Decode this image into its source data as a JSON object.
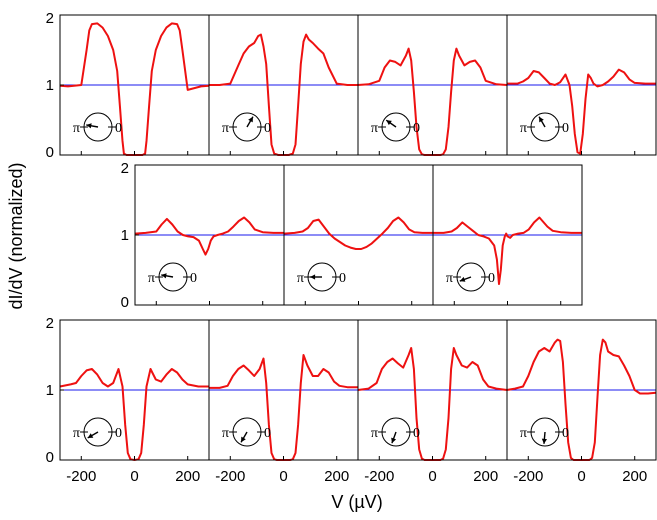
{
  "chart_data": {
    "type": "line",
    "ylabel": "dI/dV (normalized)",
    "xlabel": "V (µV)",
    "xlim": [
      -280,
      280
    ],
    "ylim": [
      0,
      2
    ],
    "x_ticks": [
      -200,
      0,
      200
    ],
    "y_ticks": [
      0,
      1,
      2
    ],
    "reference_line": 1,
    "colors": {
      "curve": "#ee1111",
      "reference": "#1a1aee",
      "frame": "#000000"
    },
    "inset_labels": {
      "left": "π",
      "right": "0"
    },
    "panels": [
      {
        "row": 0,
        "col": 0,
        "phase_deg": 170,
        "x": [
          -280,
          -250,
          -200,
          -180,
          -170,
          -160,
          -140,
          -120,
          -100,
          -80,
          -65,
          -55,
          -45,
          -40,
          -30,
          0,
          30,
          40,
          45,
          55,
          65,
          80,
          100,
          120,
          140,
          160,
          170,
          180,
          200,
          250,
          280
        ],
        "y": [
          0.99,
          0.98,
          1.0,
          1.5,
          1.78,
          1.87,
          1.88,
          1.82,
          1.7,
          1.5,
          1.2,
          0.7,
          0.2,
          0.02,
          0.0,
          0.0,
          0.0,
          0.02,
          0.2,
          0.7,
          1.2,
          1.5,
          1.7,
          1.82,
          1.88,
          1.87,
          1.78,
          1.5,
          0.93,
          0.98,
          0.99
        ]
      },
      {
        "row": 0,
        "col": 1,
        "phase_deg": 60,
        "x": [
          -280,
          -240,
          -200,
          -170,
          -150,
          -130,
          -110,
          -95,
          -85,
          -75,
          -65,
          -55,
          -45,
          -35,
          -20,
          0,
          20,
          35,
          45,
          55,
          65,
          75,
          85,
          95,
          110,
          130,
          150,
          170,
          200,
          240,
          280
        ],
        "y": [
          1.0,
          1.0,
          1.02,
          1.28,
          1.45,
          1.55,
          1.6,
          1.7,
          1.72,
          1.55,
          1.3,
          0.7,
          0.15,
          0.02,
          0.0,
          0.0,
          0.0,
          0.02,
          0.15,
          0.7,
          1.3,
          1.62,
          1.72,
          1.65,
          1.6,
          1.52,
          1.45,
          1.25,
          1.02,
          1.0,
          1.0
        ]
      },
      {
        "row": 0,
        "col": 2,
        "phase_deg": 145,
        "x": [
          -280,
          -240,
          -200,
          -180,
          -160,
          -140,
          -120,
          -100,
          -90,
          -80,
          -70,
          -60,
          -50,
          -40,
          -30,
          0,
          30,
          40,
          50,
          60,
          70,
          80,
          90,
          100,
          120,
          140,
          160,
          180,
          200,
          240,
          280
        ],
        "y": [
          1.0,
          1.01,
          1.06,
          1.25,
          1.35,
          1.33,
          1.28,
          1.42,
          1.52,
          1.35,
          0.9,
          0.4,
          0.08,
          0.01,
          0.0,
          0.0,
          0.0,
          0.01,
          0.08,
          0.4,
          0.9,
          1.35,
          1.52,
          1.42,
          1.28,
          1.33,
          1.35,
          1.25,
          1.06,
          1.01,
          1.0
        ]
      },
      {
        "row": 0,
        "col": 3,
        "phase_deg": 120,
        "x": [
          -280,
          -240,
          -220,
          -200,
          -180,
          -160,
          -140,
          -120,
          -100,
          -80,
          -60,
          -45,
          -35,
          -25,
          -15,
          -5,
          5,
          15,
          25,
          35,
          45,
          60,
          80,
          100,
          120,
          140,
          160,
          180,
          200,
          240,
          280
        ],
        "y": [
          1.02,
          1.02,
          1.05,
          1.1,
          1.2,
          1.18,
          1.1,
          1.02,
          1.0,
          1.04,
          1.15,
          1.0,
          0.7,
          0.3,
          0.04,
          0.02,
          0.3,
          0.8,
          1.15,
          1.1,
          1.02,
          0.98,
          1.0,
          1.05,
          1.12,
          1.22,
          1.18,
          1.08,
          1.03,
          1.02,
          1.02
        ]
      },
      {
        "row": 1,
        "col": 0,
        "phase_deg": 170,
        "x": [
          -280,
          -240,
          -200,
          -180,
          -160,
          -140,
          -120,
          -100,
          -80,
          -60,
          -40,
          -25,
          -15,
          -5,
          5,
          15,
          30,
          50,
          70,
          90,
          110,
          130,
          150,
          170,
          200,
          240,
          280
        ],
        "y": [
          1.02,
          1.03,
          1.05,
          1.15,
          1.23,
          1.15,
          1.05,
          1.0,
          0.98,
          0.97,
          0.92,
          0.8,
          0.72,
          0.8,
          0.92,
          0.98,
          1.0,
          1.02,
          1.05,
          1.12,
          1.2,
          1.25,
          1.18,
          1.08,
          1.04,
          1.03,
          1.03
        ]
      },
      {
        "row": 1,
        "col": 1,
        "phase_deg": 180,
        "x": [
          -280,
          -240,
          -210,
          -190,
          -170,
          -150,
          -130,
          -110,
          -90,
          -70,
          -50,
          -30,
          -10,
          10,
          30,
          50,
          70,
          90,
          110,
          130,
          150,
          170,
          190,
          210,
          240,
          280
        ],
        "y": [
          1.02,
          1.03,
          1.05,
          1.1,
          1.2,
          1.22,
          1.12,
          1.02,
          0.95,
          0.9,
          0.85,
          0.82,
          0.8,
          0.8,
          0.83,
          0.88,
          0.95,
          1.02,
          1.1,
          1.2,
          1.25,
          1.18,
          1.08,
          1.04,
          1.03,
          1.03
        ]
      },
      {
        "row": 1,
        "col": 2,
        "phase_deg": 200,
        "x": [
          -280,
          -240,
          -210,
          -190,
          -170,
          -150,
          -130,
          -110,
          -90,
          -70,
          -50,
          -40,
          -32,
          -25,
          -18,
          -10,
          -5,
          0,
          10,
          20,
          40,
          60,
          80,
          100,
          120,
          150,
          170,
          200,
          240,
          280
        ],
        "y": [
          1.03,
          1.03,
          1.05,
          1.1,
          1.18,
          1.12,
          1.06,
          1.0,
          0.98,
          0.95,
          0.85,
          0.65,
          0.3,
          0.5,
          0.85,
          0.98,
          1.02,
          0.98,
          0.96,
          1.0,
          1.02,
          1.03,
          1.08,
          1.18,
          1.25,
          1.12,
          1.06,
          1.04,
          1.03,
          1.03
        ]
      },
      {
        "row": 2,
        "col": 0,
        "phase_deg": 210,
        "x": [
          -280,
          -240,
          -220,
          -200,
          -180,
          -160,
          -140,
          -120,
          -100,
          -80,
          -60,
          -45,
          -35,
          -25,
          -15,
          0,
          15,
          25,
          35,
          45,
          60,
          80,
          100,
          120,
          140,
          160,
          180,
          200,
          240,
          280
        ],
        "y": [
          1.05,
          1.08,
          1.1,
          1.2,
          1.28,
          1.3,
          1.22,
          1.1,
          1.05,
          1.1,
          1.3,
          1.05,
          0.5,
          0.1,
          0.01,
          0.0,
          0.01,
          0.1,
          0.5,
          1.05,
          1.3,
          1.15,
          1.12,
          1.22,
          1.3,
          1.25,
          1.15,
          1.08,
          1.05,
          1.05
        ]
      },
      {
        "row": 2,
        "col": 1,
        "phase_deg": 240,
        "x": [
          -280,
          -240,
          -210,
          -190,
          -170,
          -150,
          -130,
          -110,
          -90,
          -75,
          -65,
          -55,
          -45,
          -35,
          -25,
          0,
          25,
          35,
          45,
          55,
          65,
          75,
          90,
          110,
          130,
          150,
          170,
          190,
          210,
          240,
          280
        ],
        "y": [
          1.03,
          1.03,
          1.06,
          1.2,
          1.3,
          1.35,
          1.28,
          1.2,
          1.3,
          1.45,
          1.1,
          0.5,
          0.1,
          0.01,
          0.0,
          0.0,
          0.0,
          0.01,
          0.1,
          0.5,
          1.1,
          1.5,
          1.35,
          1.2,
          1.2,
          1.3,
          1.25,
          1.12,
          1.06,
          1.04,
          1.04
        ]
      },
      {
        "row": 2,
        "col": 2,
        "phase_deg": 250,
        "x": [
          -280,
          -240,
          -210,
          -190,
          -170,
          -150,
          -130,
          -110,
          -90,
          -80,
          -70,
          -60,
          -50,
          -40,
          -30,
          0,
          30,
          40,
          50,
          60,
          70,
          80,
          90,
          110,
          130,
          150,
          170,
          190,
          210,
          240,
          280
        ],
        "y": [
          1.0,
          1.02,
          1.1,
          1.3,
          1.4,
          1.45,
          1.38,
          1.32,
          1.5,
          1.6,
          1.3,
          0.6,
          0.15,
          0.02,
          0.0,
          0.0,
          0.0,
          0.02,
          0.15,
          0.6,
          1.3,
          1.6,
          1.5,
          1.35,
          1.32,
          1.4,
          1.35,
          1.15,
          1.05,
          1.02,
          1.0
        ]
      },
      {
        "row": 2,
        "col": 3,
        "phase_deg": 265,
        "x": [
          -280,
          -250,
          -220,
          -200,
          -180,
          -160,
          -140,
          -120,
          -100,
          -90,
          -80,
          -70,
          -60,
          -50,
          -40,
          -30,
          0,
          30,
          40,
          50,
          60,
          70,
          80,
          90,
          100,
          120,
          140,
          160,
          180,
          200,
          220,
          250,
          280
        ],
        "y": [
          1.0,
          1.02,
          1.05,
          1.2,
          1.4,
          1.55,
          1.6,
          1.55,
          1.68,
          1.72,
          1.7,
          1.4,
          0.8,
          0.25,
          0.03,
          0.0,
          0.0,
          0.0,
          0.03,
          0.25,
          0.9,
          1.5,
          1.72,
          1.68,
          1.55,
          1.5,
          1.48,
          1.35,
          1.2,
          1.0,
          0.95,
          0.95,
          0.96
        ]
      }
    ]
  }
}
